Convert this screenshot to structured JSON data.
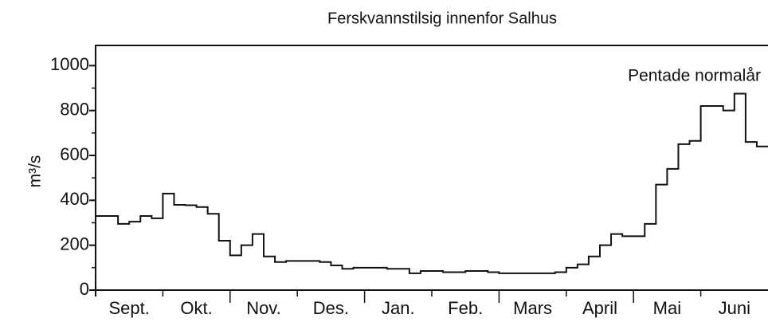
{
  "chart_data": {
    "type": "step",
    "title": "Ferskvannstilsig innenfor Salhus",
    "annotation": "Pentade normalår",
    "ylabel": "m³/s",
    "categories": [
      "Sept.",
      "Okt.",
      "Nov.",
      "Des.",
      "Jan.",
      "Feb.",
      "Mars",
      "April",
      "Mai",
      "Juni"
    ],
    "values": [
      [
        330,
        330,
        295,
        305,
        330,
        320
      ],
      [
        430,
        380,
        378,
        370,
        340,
        220
      ],
      [
        155,
        200,
        250,
        150,
        125,
        130
      ],
      [
        130,
        130,
        125,
        110,
        95,
        100
      ],
      [
        100,
        100,
        95,
        95,
        75,
        85
      ],
      [
        85,
        80,
        80,
        85,
        85,
        80
      ],
      [
        75,
        75,
        75,
        75,
        75,
        80
      ],
      [
        100,
        115,
        150,
        200,
        250,
        240
      ],
      [
        240,
        295,
        470,
        540,
        650,
        665
      ],
      [
        820,
        820,
        800,
        875,
        660,
        640
      ]
    ],
    "color": "#111111",
    "ylim": [
      0,
      1090
    ],
    "yticks": [
      0,
      200,
      400,
      600,
      800,
      1000
    ],
    "yticks_minor": [
      100,
      300,
      500,
      700,
      900
    ]
  }
}
